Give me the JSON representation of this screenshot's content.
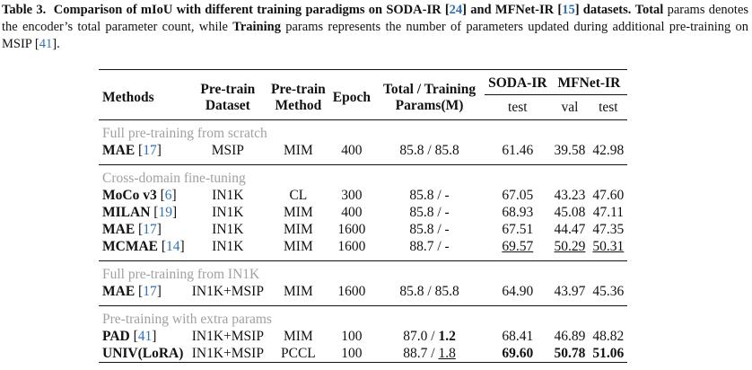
{
  "caption": {
    "label": "Table 3.",
    "title_part1": "Comparison of mIoU with different training paradigms on SODA-IR [",
    "cite_soda": "24",
    "title_part2": "] and MFNet-IR [",
    "cite_mfnet": "15",
    "title_part3": "] datasets.",
    "bold_total": "Total",
    "text_1": "params denotes the encoder’s total parameter count, while",
    "bold_training": "Training",
    "text_2": "params represents the number of parameters updated during additional pre-training on MSIP [",
    "cite_msip": "41",
    "text_3": "]."
  },
  "table": {
    "headers": {
      "methods": "Methods",
      "pretrain_dataset_1": "Pre-train",
      "pretrain_dataset_2": "Dataset",
      "pretrain_method_1": "Pre-train",
      "pretrain_method_2": "Method",
      "epoch": "Epoch",
      "params_1": "Total / Training",
      "params_2": "Params(M)",
      "soda": "SODA-IR",
      "mfnet": "MFNet-IR",
      "soda_test": "test",
      "mfnet_val": "val",
      "mfnet_test": "test"
    },
    "sections": [
      {
        "title": "Full pre-training from scratch",
        "rows": [
          {
            "method": "MAE",
            "cite": "17",
            "dataset": "MSIP",
            "pt_method": "MIM",
            "epoch": "400",
            "total": "85.8",
            "training": "85.8",
            "soda_test": "61.46",
            "mf_val": "39.58",
            "mf_test": "42.98"
          }
        ]
      },
      {
        "title": "Cross-domain fine-tuning",
        "rows": [
          {
            "method": "MoCo v3",
            "cite": "6",
            "dataset": "IN1K",
            "pt_method": "CL",
            "epoch": "300",
            "total": "85.8",
            "training": "-",
            "soda_test": "67.05",
            "mf_val": "43.23",
            "mf_test": "47.60"
          },
          {
            "method": "MILAN",
            "cite": "19",
            "dataset": "IN1K",
            "pt_method": "MIM",
            "epoch": "400",
            "total": "85.8",
            "training": "-",
            "soda_test": "68.93",
            "mf_val": "45.08",
            "mf_test": "47.11"
          },
          {
            "method": "MAE",
            "cite": "17",
            "dataset": "IN1K",
            "pt_method": "MIM",
            "epoch": "1600",
            "total": "85.8",
            "training": "-",
            "soda_test": "67.51",
            "mf_val": "44.47",
            "mf_test": "47.35"
          },
          {
            "method": "MCMAE",
            "cite": "14",
            "dataset": "IN1K",
            "pt_method": "MIM",
            "epoch": "1600",
            "total": "88.7",
            "training": "-",
            "soda_test": "69.57",
            "mf_val": "50.29",
            "mf_test": "50.31"
          }
        ]
      },
      {
        "title": "Full pre-training from IN1K",
        "rows": [
          {
            "method": "MAE",
            "cite": "17",
            "dataset": "IN1K+MSIP",
            "pt_method": "MIM",
            "epoch": "1600",
            "total": "85.8",
            "training": "85.8",
            "soda_test": "64.90",
            "mf_val": "43.97",
            "mf_test": "45.36"
          }
        ]
      },
      {
        "title": "Pre-training with extra params",
        "rows": [
          {
            "method": "PAD",
            "cite": "41",
            "dataset": "IN1K+MSIP",
            "pt_method": "MIM",
            "epoch": "100",
            "total": "87.0",
            "training": "1.2",
            "soda_test": "68.41",
            "mf_val": "46.89",
            "mf_test": "48.82"
          },
          {
            "method": "UNIV(LoRA)",
            "cite": "",
            "dataset": "IN1K+MSIP",
            "pt_method": "PCCL",
            "epoch": "100",
            "total": "88.7",
            "training": "1.8",
            "soda_test": "69.60",
            "mf_val": "50.78",
            "mf_test": "51.06"
          }
        ]
      }
    ]
  }
}
